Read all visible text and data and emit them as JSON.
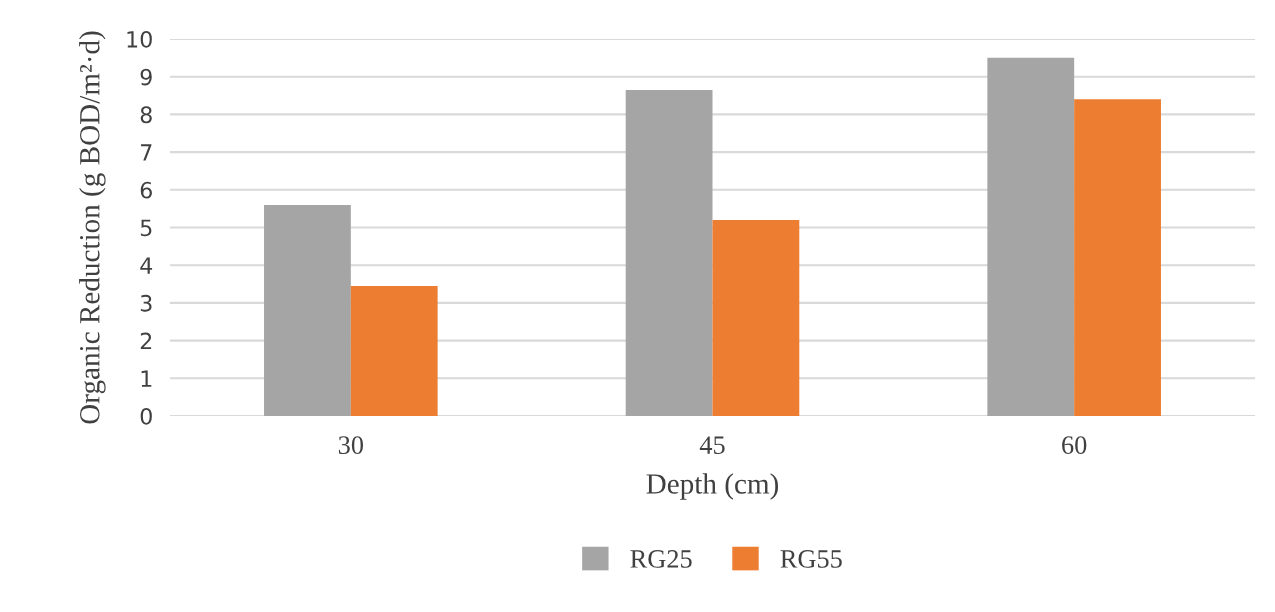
{
  "chart_data": {
    "type": "bar",
    "xlabel": "Depth (cm)",
    "ylabel": "Organic Reduction (g BOD/m²·d)",
    "categories": [
      "30",
      "45",
      "60"
    ],
    "series": [
      {
        "name": "RG25",
        "color": "#a5a5a5",
        "values": [
          5.6,
          8.65,
          9.5
        ]
      },
      {
        "name": "RG55",
        "color": "#ed7d31",
        "values": [
          3.45,
          5.2,
          8.4
        ]
      }
    ],
    "ylim": [
      0,
      10
    ],
    "yticks": [
      0,
      1,
      2,
      3,
      4,
      5,
      6,
      7,
      8,
      9,
      10
    ],
    "grid": "y",
    "legend": "bottom"
  }
}
